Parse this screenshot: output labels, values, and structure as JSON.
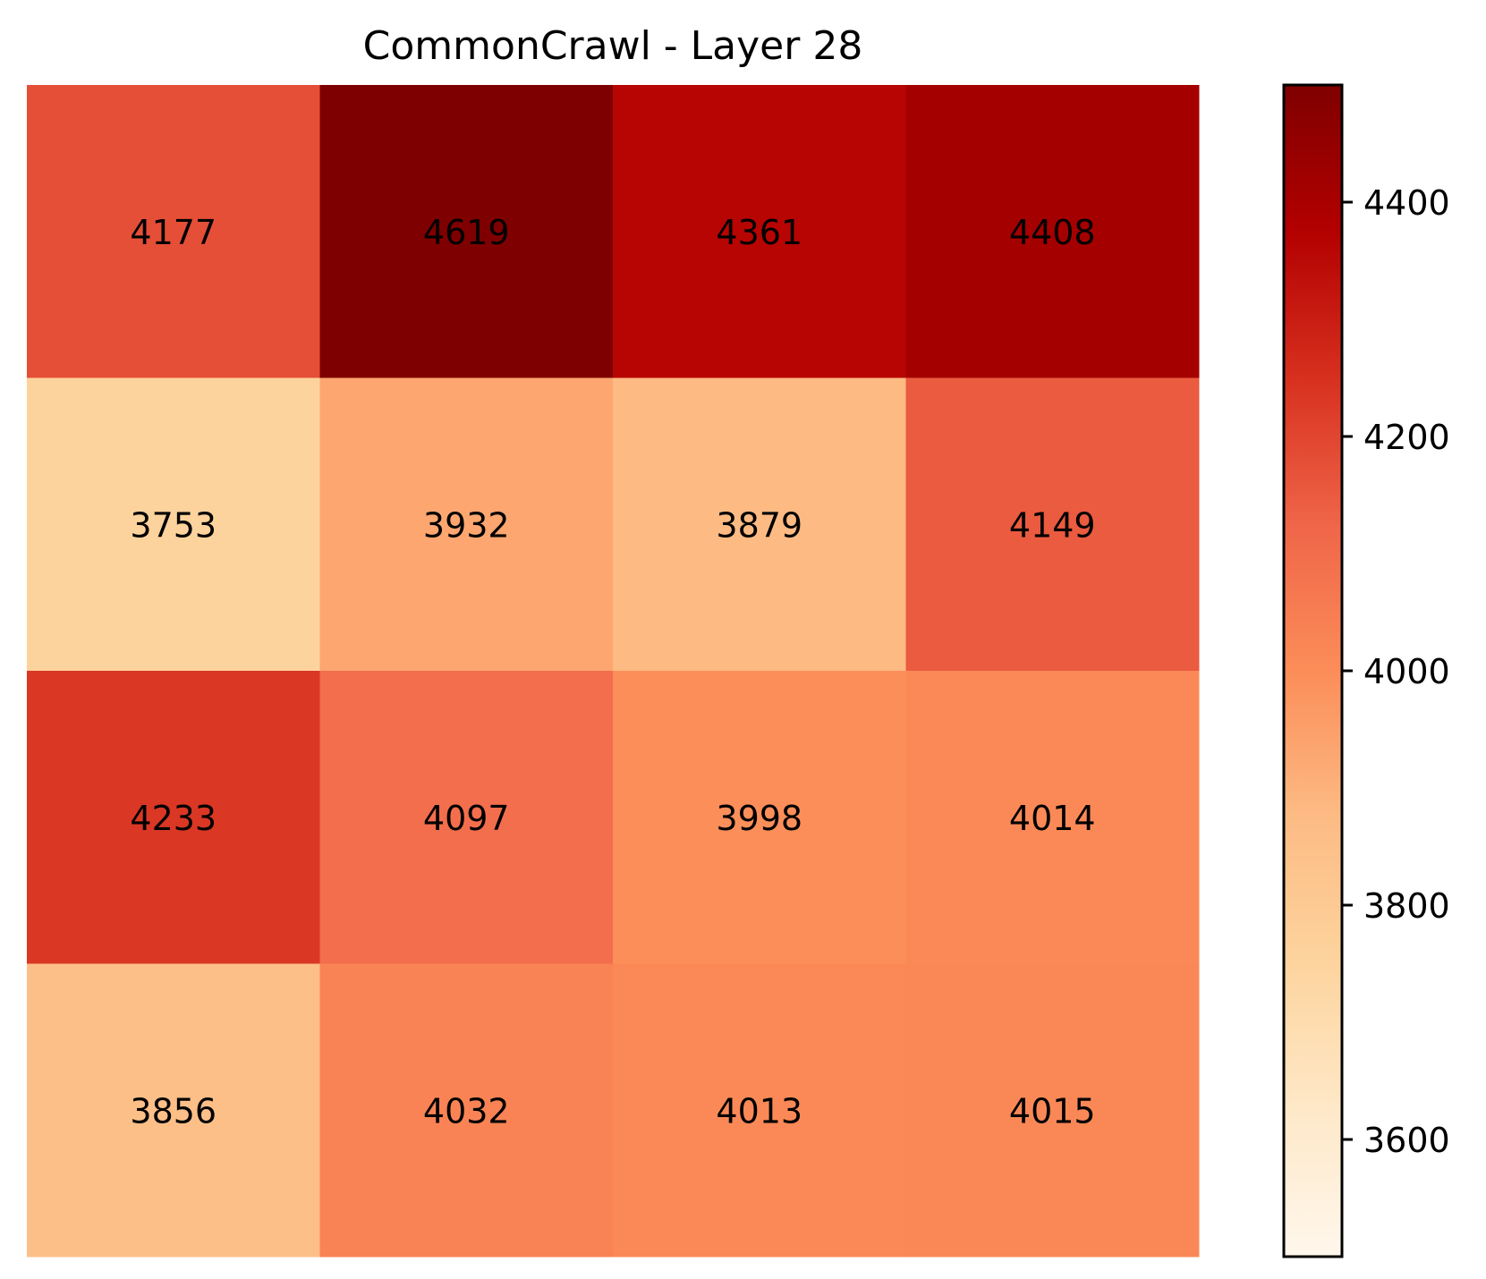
{
  "chart_data": {
    "type": "heatmap",
    "title": "CommonCrawl - Layer 28",
    "xlabel": "",
    "ylabel": "",
    "colormap": "OrRd",
    "rows": 4,
    "cols": 4,
    "values": [
      [
        4177,
        4619,
        4361,
        4408
      ],
      [
        3753,
        3932,
        3879,
        4149
      ],
      [
        4233,
        4097,
        3998,
        4014
      ],
      [
        3856,
        4032,
        4013,
        4015
      ]
    ],
    "colorbar": {
      "range": [
        3500,
        4500
      ],
      "ticks": [
        3600,
        3800,
        4000,
        4200,
        4400
      ],
      "tick_labels": [
        "3600",
        "3800",
        "4000",
        "4200",
        "4400"
      ]
    }
  }
}
